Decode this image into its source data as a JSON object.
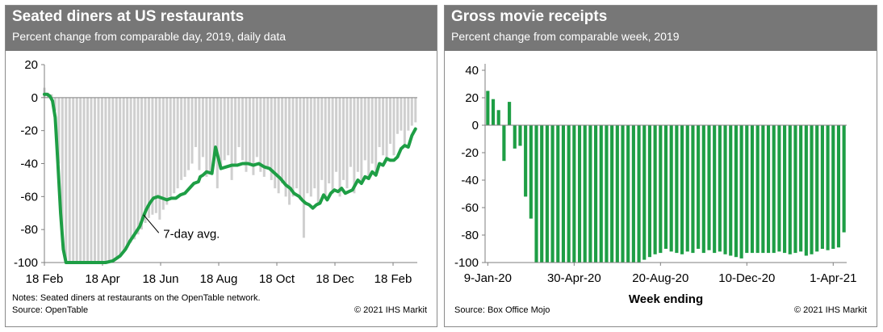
{
  "left": {
    "title": "Seated diners at US restaurants",
    "subtitle": "Percent change from comparable day, 2019, daily data",
    "notes": "Notes: Seated diners at restaurants on the OpenTable network.",
    "source": "Source: OpenTable",
    "copyright": "© 2021 IHS Markit"
  },
  "right": {
    "title": "Gross movie receipts",
    "subtitle": "Percent change from comparable week, 2019",
    "source": "Source: Box Office Mojo",
    "copyright": "© 2021 IHS Markit"
  },
  "colors": {
    "series": "#1e9e45",
    "daily": "#cfcfcf",
    "axis": "#7f7f7f"
  },
  "chart_data": [
    {
      "type": "line",
      "title": "Seated diners at US restaurants",
      "subtitle": "Percent change from comparable day, 2019, daily data",
      "ylim": [
        -100,
        20
      ],
      "yticks": [
        "20",
        "0",
        "-20",
        "-40",
        "-60",
        "-80",
        "-100"
      ],
      "xlabels": [
        "18 Feb",
        "18 Apr",
        "18 Jun",
        "18 Aug",
        "18 Oct",
        "18 Dec",
        "18 Feb"
      ],
      "xlim_days": [
        0,
        414
      ],
      "annotation": "7-day avg.",
      "series": [
        {
          "name": "7-day avg.",
          "x_days": [
            0,
            3,
            6,
            9,
            12,
            15,
            18,
            21,
            24,
            27,
            30,
            34,
            38,
            45,
            52,
            60,
            68,
            76,
            84,
            90,
            95,
            100,
            106,
            110,
            113,
            117,
            121,
            126,
            131,
            136,
            141,
            146,
            151,
            156,
            161,
            166,
            171,
            173,
            176,
            180,
            186,
            190,
            196,
            202,
            208,
            214,
            220,
            226,
            232,
            238,
            244,
            250,
            256,
            262,
            268,
            273,
            277,
            280,
            283,
            286,
            290,
            294,
            298,
            302,
            306,
            310,
            314,
            318,
            322,
            326,
            330,
            334,
            338,
            342,
            348,
            352,
            356,
            360,
            364,
            368,
            372,
            376,
            380,
            384,
            388,
            392,
            396,
            400,
            404,
            408,
            412
          ],
          "values": [
            2,
            2,
            1,
            -2,
            -12,
            -40,
            -70,
            -92,
            -100,
            -100,
            -100,
            -100,
            -100,
            -100,
            -100,
            -100,
            -100,
            -99,
            -96,
            -92,
            -87,
            -83,
            -78,
            -72,
            -68,
            -64,
            -61,
            -60,
            -61,
            -62,
            -61,
            -61,
            -59,
            -58,
            -55,
            -52,
            -51,
            -48,
            -47,
            -45,
            -46,
            -30,
            -43,
            -42,
            -41,
            -41,
            -40,
            -40,
            -41,
            -40,
            -42,
            -43,
            -46,
            -49,
            -53,
            -55,
            -58,
            -59,
            -60,
            -62,
            -64,
            -65,
            -67,
            -65,
            -64,
            -59,
            -62,
            -58,
            -56,
            -57,
            -55,
            -58,
            -57,
            -56,
            -50,
            -52,
            -48,
            -49,
            -45,
            -47,
            -40,
            -41,
            -37,
            -38,
            -38,
            -36,
            -31,
            -29,
            -30,
            -23,
            -19
          ]
        },
        {
          "name": "daily",
          "x_days": [
            0,
            4,
            8,
            12,
            16,
            20,
            24,
            28,
            32,
            36,
            40,
            44,
            48,
            52,
            56,
            60,
            64,
            68,
            72,
            76,
            80,
            84,
            88,
            92,
            96,
            100,
            104,
            108,
            112,
            116,
            120,
            124,
            128,
            132,
            136,
            140,
            144,
            148,
            152,
            156,
            160,
            164,
            168,
            172,
            176,
            180,
            184,
            188,
            192,
            196,
            200,
            204,
            208,
            212,
            216,
            220,
            224,
            228,
            232,
            236,
            240,
            244,
            248,
            252,
            256,
            260,
            264,
            268,
            272,
            276,
            280,
            284,
            288,
            292,
            296,
            300,
            304,
            308,
            312,
            316,
            320,
            324,
            328,
            332,
            336,
            340,
            344,
            348,
            352,
            356,
            360,
            364,
            368,
            372,
            376,
            380,
            384,
            388,
            392,
            396,
            400,
            404,
            408,
            412
          ],
          "values": [
            6,
            3,
            2,
            -8,
            -40,
            -85,
            -100,
            -100,
            -100,
            -100,
            -100,
            -100,
            -100,
            -100,
            -100,
            -100,
            -100,
            -100,
            -100,
            -99,
            -98,
            -96,
            -94,
            -91,
            -88,
            -86,
            -83,
            -80,
            -76,
            -73,
            -71,
            -70,
            -74,
            -68,
            -65,
            -60,
            -58,
            -55,
            -50,
            -48,
            -44,
            -40,
            -30,
            -44,
            -36,
            -48,
            -45,
            -40,
            -55,
            -43,
            -38,
            -35,
            -50,
            -40,
            -30,
            -38,
            -45,
            -40,
            -47,
            -36,
            -45,
            -48,
            -42,
            -50,
            -55,
            -58,
            -52,
            -60,
            -65,
            -60,
            -55,
            -62,
            -85,
            -58,
            -60,
            -55,
            -65,
            -50,
            -60,
            -52,
            -58,
            -45,
            -60,
            -50,
            -55,
            -42,
            -58,
            -45,
            -50,
            -38,
            -50,
            -40,
            -45,
            -30,
            -35,
            -38,
            -28,
            -35,
            -22,
            -20,
            -28,
            -20,
            -17,
            -15
          ]
        }
      ]
    },
    {
      "type": "bar",
      "title": "Gross movie receipts",
      "subtitle": "Percent change from comparable week, 2019",
      "ylim": [
        -100,
        40
      ],
      "yticks": [
        "40",
        "20",
        "0",
        "-20",
        "-40",
        "-60",
        "-80",
        "-100"
      ],
      "xlabels": [
        "9-Jan-20",
        "30-Apr-20",
        "20-Aug-20",
        "10-Dec-20",
        "1-Apr-21"
      ],
      "xlabel_index": [
        0,
        16,
        32,
        48,
        64
      ],
      "xlabel": "Week ending",
      "values": [
        25,
        19,
        11,
        -26,
        17,
        -17,
        -15,
        -52,
        -68,
        -100,
        -100,
        -100,
        -100,
        -100,
        -100,
        -100,
        -100,
        -100,
        -100,
        -100,
        -100,
        -100,
        -100,
        -100,
        -100,
        -100,
        -100,
        -100,
        -100,
        -98,
        -96,
        -94,
        -93,
        -90,
        -92,
        -93,
        -94,
        -92,
        -93,
        -90,
        -93,
        -91,
        -93,
        -92,
        -94,
        -95,
        -96,
        -97,
        -93,
        -93,
        -93,
        -93,
        -93,
        -93,
        -92,
        -93,
        -94,
        -93,
        -92,
        -95,
        -94,
        -92,
        -90,
        -91,
        -90,
        -89,
        -78
      ]
    }
  ]
}
